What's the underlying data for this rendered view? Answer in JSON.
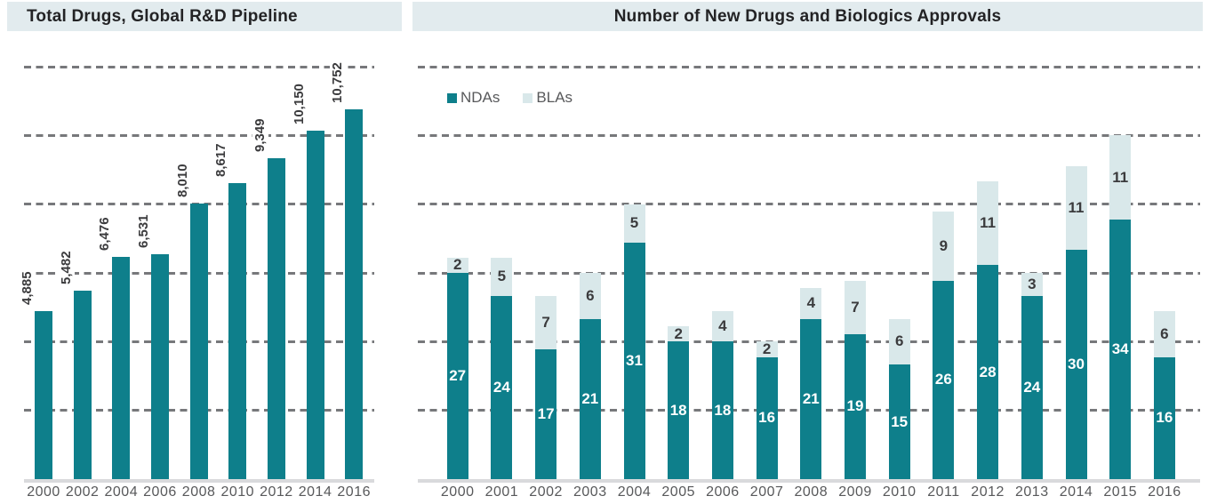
{
  "colors": {
    "nda_teal": "#0e7f8b",
    "bla_light_teal": "#d9e8ea",
    "header_band": "#e2ebee",
    "grid_dash": "#77787b",
    "baseline_gray": "#d9dadc",
    "axis_label_gray": "#58595b",
    "title_text": "#232325",
    "value_label_dark": "#3b3b3d",
    "bar_value_white": "#ffffff"
  },
  "chart_data": [
    {
      "type": "bar",
      "title": "Total Drugs, Global R&D Pipeline",
      "categories": [
        "2000",
        "2002",
        "2004",
        "2006",
        "2008",
        "2010",
        "2012",
        "2014",
        "2016"
      ],
      "values": [
        4885,
        5482,
        6476,
        6531,
        8010,
        8617,
        9349,
        10150,
        10752
      ],
      "value_labels": [
        "4,885",
        "5,482",
        "6,476",
        "6,531",
        "8,010",
        "8,617",
        "9,349",
        "10,150",
        "10,752"
      ],
      "xlabel": "",
      "ylabel": "",
      "ylim": [
        0,
        12000
      ],
      "gridlines": "dashed, horizontal, every 2000, no y-axis tick labels",
      "bar_color": "#0e7f8b",
      "value_label_style": "rotated 90° above each bar, bold dark gray"
    },
    {
      "type": "stacked-bar",
      "title": "Number of New Drugs and Biologics Approvals",
      "categories": [
        "2000",
        "2001",
        "2002",
        "2003",
        "2004",
        "2005",
        "2006",
        "2007",
        "2008",
        "2009",
        "2010",
        "2011",
        "2012",
        "2013",
        "2014",
        "2015",
        "2016"
      ],
      "series": [
        {
          "name": "NDAs",
          "color": "#0e7f8b",
          "label_color": "#ffffff",
          "values": [
            27,
            24,
            17,
            21,
            31,
            18,
            18,
            16,
            21,
            19,
            15,
            26,
            28,
            24,
            30,
            34,
            16
          ]
        },
        {
          "name": "BLAs",
          "color": "#d9e8ea",
          "label_color": "#3b3b3d",
          "values": [
            2,
            5,
            7,
            6,
            5,
            2,
            4,
            2,
            4,
            7,
            6,
            9,
            11,
            3,
            11,
            11,
            6
          ]
        }
      ],
      "xlabel": "",
      "ylabel": "",
      "ylim": [
        0,
        54
      ],
      "gridlines": "dashed, horizontal, 6 lines, no y-axis tick labels",
      "legend_position": "top-left inside plot",
      "value_label_style": "segment counts centered inside each stacked segment"
    }
  ]
}
